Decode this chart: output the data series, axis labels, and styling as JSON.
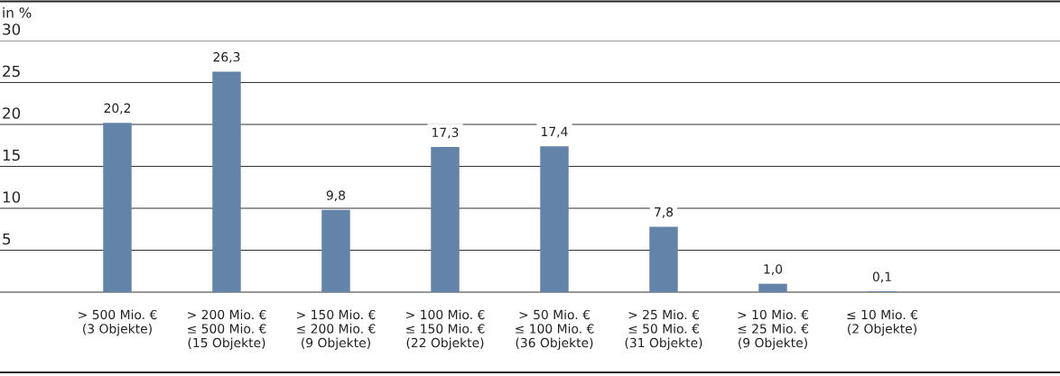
{
  "chart_data": {
    "type": "bar",
    "ylabel": "in %",
    "categories": [
      "> 500 Mio. €\n(3 Objekte)",
      "> 200 Mio. €\n≤ 500 Mio. €\n(15 Objekte)",
      "> 150 Mio. €\n≤ 200 Mio. €\n(9 Objekte)",
      "> 100 Mio. €\n≤ 150 Mio. €\n(22 Objekte)",
      "> 50 Mio. €\n≤ 100 Mio. €\n(36 Objekte)",
      "> 25 Mio. €\n≤ 50 Mio. €\n(31 Objekte)",
      "> 10 Mio. €\n≤ 25 Mio. €\n(9 Objekte)",
      "≤ 10 Mio. €\n(2 Objekte)"
    ],
    "values": [
      20.2,
      26.3,
      9.8,
      17.3,
      17.4,
      7.8,
      1.0,
      0.1
    ],
    "value_labels": [
      "20,2",
      "26,3",
      "9,8",
      "17,3",
      "17,4",
      "7,8",
      "1,0",
      "0,1"
    ],
    "color": "#6383a8",
    "ylim": [
      0,
      30
    ],
    "yticks": [
      5,
      10,
      15,
      20,
      25,
      30
    ],
    "grid": "y",
    "legend": false
  }
}
